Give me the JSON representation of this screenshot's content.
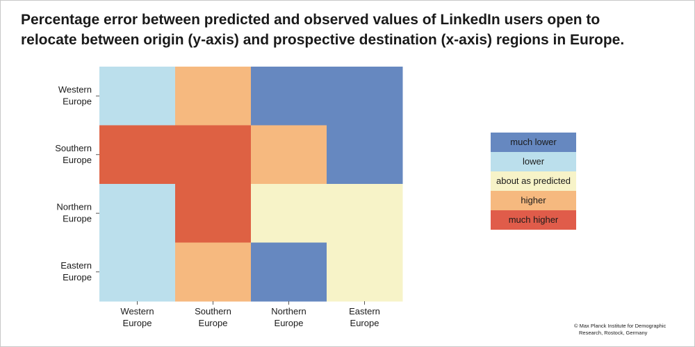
{
  "title_line1": "Percentage error between predicted and observed values of LinkedIn users open to",
  "title_line2": "relocate between origin (y-axis) and prospective destination (x-axis) regions in Europe.",
  "chart_data": {
    "type": "heatmap",
    "rows": [
      [
        "Western",
        "Europe"
      ],
      [
        "Southern",
        "Europe"
      ],
      [
        "Northern",
        "Europe"
      ],
      [
        "Eastern",
        "Europe"
      ]
    ],
    "columns": [
      [
        "Western",
        "Europe"
      ],
      [
        "Southern",
        "Europe"
      ],
      [
        "Northern",
        "Europe"
      ],
      [
        "Eastern",
        "Europe"
      ]
    ],
    "values": [
      [
        "lower",
        "higher",
        "much lower",
        "much lower"
      ],
      [
        "much higher",
        "much higher",
        "higher",
        "much lower"
      ],
      [
        "lower",
        "much higher",
        "about as predicted",
        "about as predicted"
      ],
      [
        "lower",
        "higher",
        "much lower",
        "about as predicted"
      ]
    ]
  },
  "legend": [
    {
      "label": "much lower",
      "color": "#6688c0"
    },
    {
      "label": "lower",
      "color": "#bbdfec"
    },
    {
      "label": "about as predicted",
      "color": "#f7f3c8"
    },
    {
      "label": "higher",
      "color": "#f6b97f"
    },
    {
      "label": "much higher",
      "color": "#e05c4a"
    }
  ],
  "cell_colors": {
    "much lower": "#6688c0",
    "lower": "#bbdfec",
    "about as predicted": "#f7f3c8",
    "higher": "#f6b97f",
    "much higher": "#de6143"
  },
  "credit_line1": "© Max Planck Institute for Demographic",
  "credit_line2": "Research, Rostock, Germany"
}
